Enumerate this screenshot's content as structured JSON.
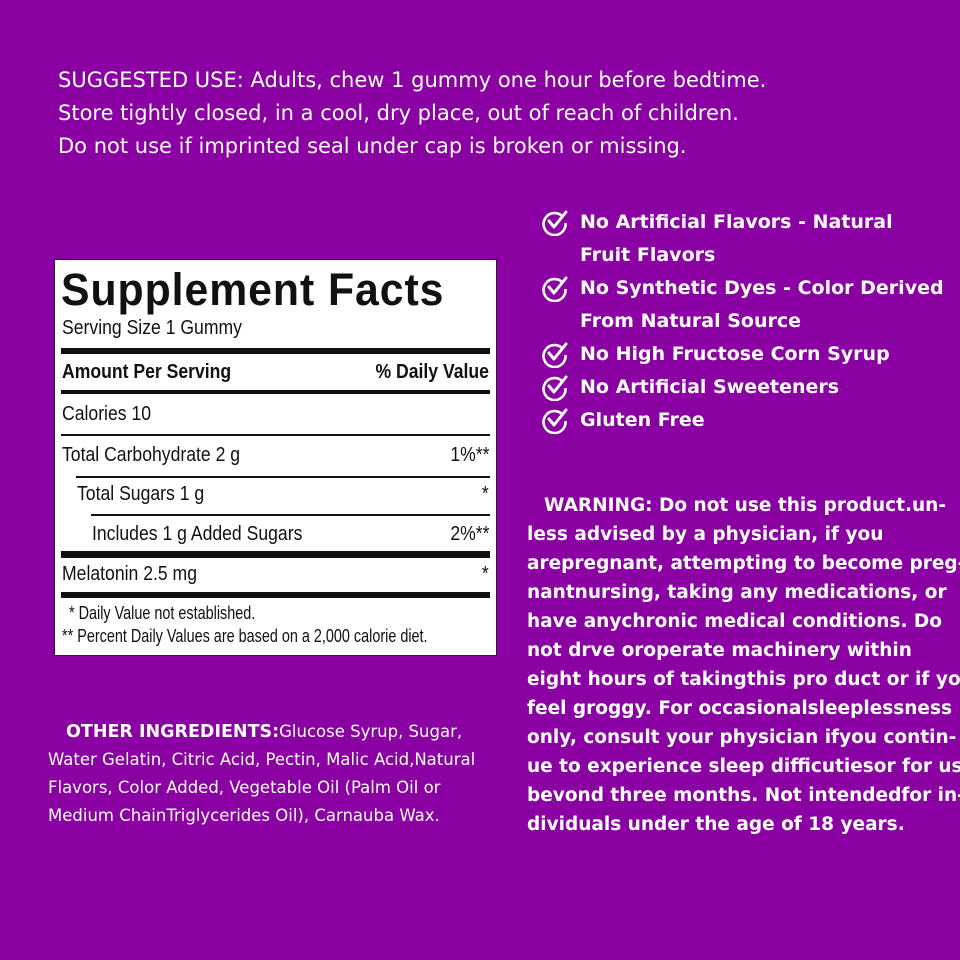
{
  "suggested_use": [
    "SUGGESTED USE: Adults, chew 1 gummy one hour before bedtime.",
    "Store tightly closed, in a cool, dry place, out of reach of children.",
    "Do not use if imprinted seal under cap is broken or missing."
  ],
  "facts": {
    "title": "Supplement Facts",
    "serving_size": "Serving Size 1 Gummy",
    "amount_header": "Amount Per Serving",
    "dv_header": "% Daily Value",
    "rows": [
      {
        "label": "Calories  10",
        "dv": ""
      },
      {
        "label": "Total Carbohydrate  2 g",
        "dv": "1%**"
      },
      {
        "label": "Total Sugars  1 g",
        "dv": "*"
      },
      {
        "label": "Includes  1 g Added Sugars",
        "dv": "2%**"
      },
      {
        "label": "Melatonin  2.5 mg",
        "dv": "*"
      }
    ],
    "footnote1": "* Daily Value not established.",
    "footnote2": "** Percent Daily Values are based on a 2,000 calorie diet."
  },
  "claims": {
    "icon": "circle-check-icon",
    "items": [
      "No Artificial Flavors - Natural",
      "Fruit Flavors",
      "No Synthetic Dyes - Color Derived",
      "From Natural Source",
      "No High Fructose Corn Syrup",
      "No Artificial Sweeteners",
      "Gluten Free"
    ]
  },
  "warning": [
    "WARNING: Do not use this product.un-",
    "less advised by a physician, if you",
    "arepregnant, attempting to become preg-",
    "nantnursing, taking any medications, or",
    "have anychronic medical conditions. Do",
    "not drve oroperate machinery within",
    "eight hours of takingthis pro duct or if you",
    "feel groggy. For occasionalsleeplessness",
    "only, consult your physician ifyou contin-",
    "ue to experience sleep difficutiesor for use",
    "bevond three months. Not intendedfor in-",
    "dividuals under the age of 18 years."
  ],
  "ingredients": {
    "label": "OTHER INGREDIENTS:",
    "lines": [
      "Glucose Syrup, Sugar,",
      "Water Gelatin, Citric Acid, Pectin, Malic Acid,Natural",
      "Flavors, Color Added, Vegetable Oil (Palm Oil or",
      "Medium ChainTriglycerides Oil), Carnauba Wax."
    ]
  },
  "colors": {
    "background": "#8a00a2",
    "text": "#ffffff",
    "panel": "#ffffff"
  }
}
